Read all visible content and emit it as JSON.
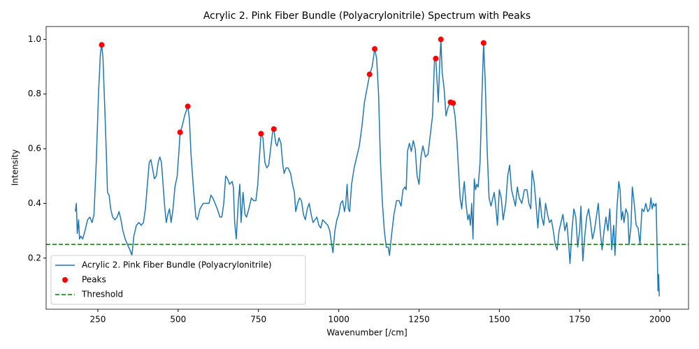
{
  "chart_data": {
    "type": "line",
    "title": "Acrylic 2. Pink Fiber Bundle (Polyacrylonitrile) Spectrum with Peaks",
    "xlabel": "Wavenumber [/cm]",
    "ylabel": "Intensity",
    "xlim": [
      89,
      2089
    ],
    "ylim": [
      0.013,
      1.047
    ],
    "xticks": [
      250,
      500,
      750,
      1000,
      1250,
      1500,
      1750,
      2000
    ],
    "yticks": [
      0.2,
      0.4,
      0.6,
      0.8,
      {
        "value": 1,
        "label": "1.0"
      }
    ],
    "grid": false,
    "legend": "lower left",
    "series": [
      {
        "name": "Acrylic 2. Pink Fiber Bundle (Polyacrylonitrile)",
        "kind": "line",
        "color": "#1f77b4",
        "x": [
          180,
          183,
          186,
          190,
          193,
          197,
          203,
          210,
          218,
          225,
          232,
          238,
          245,
          252,
          258,
          262,
          266,
          270,
          276,
          280,
          285,
          290,
          296,
          303,
          310,
          316,
          322,
          328,
          335,
          342,
          350,
          356,
          362,
          370,
          378,
          385,
          392,
          398,
          405,
          410,
          415,
          420,
          426,
          432,
          438,
          443,
          448,
          453,
          458,
          463,
          468,
          473,
          478,
          484,
          490,
          497,
          503,
          506,
          512,
          520,
          530,
          535,
          540,
          548,
          555,
          560,
          568,
          578,
          590,
          596,
          602,
          608,
          615,
          622,
          630,
          636,
          642,
          648,
          654,
          660,
          668,
          672,
          676,
          681,
          687,
          692,
          696,
          702,
          708,
          713,
          720,
          728,
          735,
          742,
          748,
          752,
          758,
          764,
          770,
          776,
          782,
          788,
          794,
          798,
          804,
          808,
          814,
          820,
          826,
          830,
          836,
          842,
          850,
          856,
          862,
          866,
          872,
          878,
          884,
          890,
          896,
          902,
          908,
          914,
          920,
          926,
          932,
          938,
          944,
          950,
          958,
          966,
          972,
          978,
          982,
          988,
          994,
          1000,
          1006,
          1012,
          1018,
          1022,
          1026,
          1030,
          1034,
          1040,
          1048,
          1056,
          1064,
          1072,
          1080,
          1088,
          1096,
          1104,
          1112,
          1118,
          1124,
          1130,
          1136,
          1142,
          1148,
          1154,
          1158,
          1164,
          1172,
          1180,
          1188,
          1194,
          1200,
          1206,
          1210,
          1214,
          1220,
          1226,
          1232,
          1238,
          1244,
          1250,
          1256,
          1262,
          1266,
          1270,
          1278,
          1286,
          1292,
          1298,
          1302,
          1306,
          1310,
          1314,
          1318,
          1322,
          1328,
          1334,
          1340,
          1348,
          1356,
          1362,
          1368,
          1374,
          1378,
          1383,
          1388,
          1391,
          1396,
          1402,
          1406,
          1410,
          1414,
          1418,
          1422,
          1426,
          1430,
          1434,
          1440,
          1446,
          1451,
          1456,
          1462,
          1468,
          1474,
          1480,
          1484,
          1488,
          1494,
          1500,
          1506,
          1512,
          1520,
          1526,
          1532,
          1538,
          1544,
          1550,
          1556,
          1562,
          1570,
          1578,
          1586,
          1592,
          1598,
          1602,
          1608,
          1614,
          1620,
          1626,
          1632,
          1638,
          1644,
          1650,
          1656,
          1662,
          1668,
          1674,
          1680,
          1686,
          1692,
          1698,
          1704,
          1710,
          1716,
          1720,
          1726,
          1732,
          1738,
          1744,
          1750,
          1754,
          1760,
          1766,
          1772,
          1778,
          1784,
          1790,
          1796,
          1802,
          1808,
          1814,
          1820,
          1826,
          1832,
          1838,
          1844,
          1850,
          1856,
          1860,
          1866,
          1872,
          1876,
          1880,
          1884,
          1888,
          1894,
          1900,
          1904,
          1910,
          1914,
          1920,
          1926,
          1932,
          1938,
          1944,
          1950,
          1956,
          1962,
          1968,
          1972,
          1976,
          1980,
          1984,
          1988,
          1992,
          1994,
          1996,
          1998
        ],
        "values": [
          0.37,
          0.4,
          0.29,
          0.34,
          0.27,
          0.28,
          0.27,
          0.3,
          0.34,
          0.35,
          0.33,
          0.36,
          0.55,
          0.8,
          0.95,
          0.98,
          0.93,
          0.8,
          0.6,
          0.44,
          0.43,
          0.38,
          0.35,
          0.34,
          0.35,
          0.37,
          0.34,
          0.3,
          0.27,
          0.25,
          0.23,
          0.21,
          0.28,
          0.32,
          0.33,
          0.32,
          0.33,
          0.38,
          0.48,
          0.55,
          0.56,
          0.53,
          0.49,
          0.5,
          0.55,
          0.57,
          0.55,
          0.47,
          0.39,
          0.33,
          0.36,
          0.38,
          0.33,
          0.38,
          0.46,
          0.5,
          0.6,
          0.66,
          0.68,
          0.72,
          0.755,
          0.71,
          0.58,
          0.45,
          0.35,
          0.34,
          0.38,
          0.4,
          0.4,
          0.4,
          0.43,
          0.42,
          0.4,
          0.38,
          0.35,
          0.35,
          0.4,
          0.5,
          0.49,
          0.47,
          0.48,
          0.46,
          0.33,
          0.27,
          0.4,
          0.47,
          0.33,
          0.44,
          0.36,
          0.35,
          0.38,
          0.42,
          0.41,
          0.41,
          0.47,
          0.55,
          0.655,
          0.64,
          0.55,
          0.53,
          0.54,
          0.6,
          0.66,
          0.67,
          0.62,
          0.61,
          0.64,
          0.62,
          0.54,
          0.51,
          0.53,
          0.53,
          0.51,
          0.47,
          0.44,
          0.37,
          0.4,
          0.42,
          0.41,
          0.36,
          0.34,
          0.38,
          0.4,
          0.36,
          0.33,
          0.34,
          0.35,
          0.32,
          0.31,
          0.34,
          0.33,
          0.32,
          0.3,
          0.25,
          0.22,
          0.3,
          0.34,
          0.36,
          0.4,
          0.41,
          0.37,
          0.4,
          0.47,
          0.38,
          0.37,
          0.47,
          0.53,
          0.57,
          0.61,
          0.68,
          0.77,
          0.82,
          0.87,
          0.9,
          0.965,
          0.93,
          0.8,
          0.55,
          0.4,
          0.3,
          0.24,
          0.24,
          0.21,
          0.28,
          0.36,
          0.41,
          0.41,
          0.39,
          0.45,
          0.46,
          0.45,
          0.59,
          0.62,
          0.59,
          0.63,
          0.6,
          0.5,
          0.47,
          0.57,
          0.61,
          0.59,
          0.57,
          0.58,
          0.66,
          0.72,
          0.92,
          0.93,
          0.85,
          0.77,
          0.9,
          1.0,
          0.88,
          0.82,
          0.72,
          0.75,
          0.77,
          0.765,
          0.72,
          0.63,
          0.5,
          0.42,
          0.38,
          0.45,
          0.48,
          0.4,
          0.34,
          0.36,
          0.32,
          0.4,
          0.27,
          0.49,
          0.45,
          0.47,
          0.46,
          0.55,
          0.8,
          0.985,
          0.85,
          0.6,
          0.42,
          0.39,
          0.42,
          0.44,
          0.4,
          0.32,
          0.45,
          0.42,
          0.34,
          0.4,
          0.5,
          0.54,
          0.45,
          0.42,
          0.39,
          0.46,
          0.42,
          0.4,
          0.45,
          0.45,
          0.4,
          0.38,
          0.52,
          0.48,
          0.4,
          0.31,
          0.42,
          0.35,
          0.32,
          0.4,
          0.36,
          0.33,
          0.34,
          0.3,
          0.25,
          0.23,
          0.3,
          0.33,
          0.36,
          0.3,
          0.33,
          0.25,
          0.18,
          0.3,
          0.38,
          0.35,
          0.24,
          0.3,
          0.39,
          0.19,
          0.28,
          0.35,
          0.38,
          0.33,
          0.27,
          0.3,
          0.35,
          0.4,
          0.3,
          0.23,
          0.3,
          0.35,
          0.3,
          0.38,
          0.23,
          0.32,
          0.21,
          0.38,
          0.48,
          0.45,
          0.34,
          0.37,
          0.33,
          0.38,
          0.36,
          0.25,
          0.32,
          0.46,
          0.4,
          0.32,
          0.31,
          0.25,
          0.38,
          0.37,
          0.4,
          0.37,
          0.38,
          0.42,
          0.38,
          0.4,
          0.39,
          0.4,
          0.2,
          0.08,
          0.14,
          0.06
        ]
      },
      {
        "name": "Peaks",
        "kind": "scatter",
        "color": "#ff0000",
        "x": [
          262,
          506,
          530,
          758,
          798,
          1096,
          1112,
          1302,
          1318,
          1348,
          1356,
          1451
        ],
        "values": [
          0.98,
          0.66,
          0.755,
          0.655,
          0.672,
          0.872,
          0.965,
          0.93,
          1.0,
          0.77,
          0.767,
          0.987
        ]
      },
      {
        "name": "Threshold",
        "kind": "hline",
        "color": "#008000",
        "values": [
          0.25
        ]
      }
    ]
  }
}
